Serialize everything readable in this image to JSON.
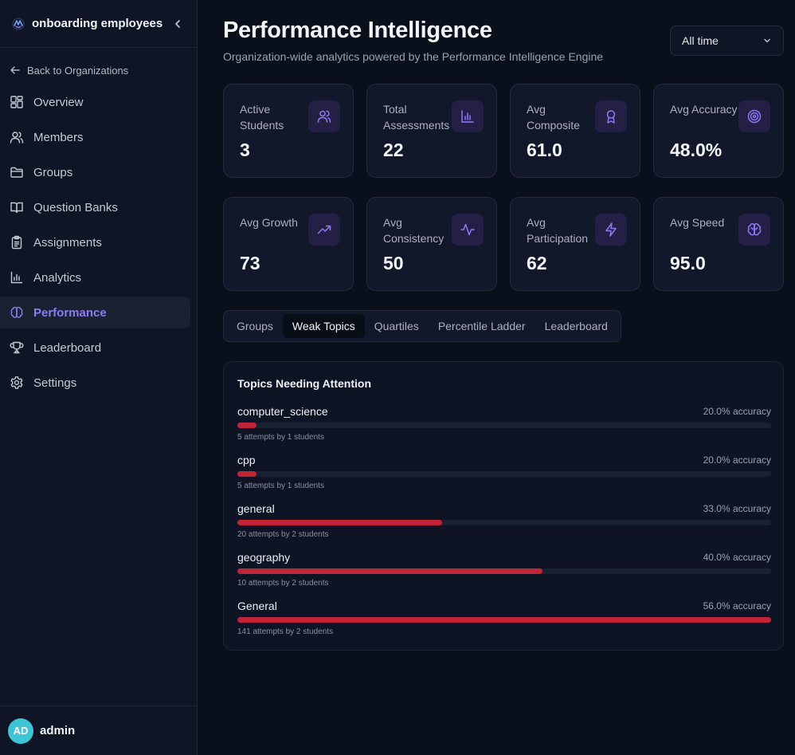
{
  "sidebar": {
    "org_name": "onboarding employees",
    "back_label": "Back to Organizations",
    "items": [
      {
        "label": "Overview",
        "icon": "layout-dashboard-icon"
      },
      {
        "label": "Members",
        "icon": "users-icon"
      },
      {
        "label": "Groups",
        "icon": "folder-icon"
      },
      {
        "label": "Question Banks",
        "icon": "book-open-icon"
      },
      {
        "label": "Assignments",
        "icon": "clipboard-icon"
      },
      {
        "label": "Analytics",
        "icon": "bar-chart-icon"
      },
      {
        "label": "Performance",
        "icon": "brain-icon",
        "active": true
      },
      {
        "label": "Leaderboard",
        "icon": "trophy-icon"
      },
      {
        "label": "Settings",
        "icon": "gear-icon"
      }
    ],
    "user": {
      "initials": "AD",
      "name": "admin"
    }
  },
  "header": {
    "title": "Performance Intelligence",
    "subtitle": "Organization-wide analytics powered by the Performance Intelligence Engine",
    "time_filter": "All time"
  },
  "stats": [
    {
      "label": "Active Students",
      "value": "3",
      "icon": "users-icon"
    },
    {
      "label": "Total Assessments",
      "value": "22",
      "icon": "bar-chart-icon"
    },
    {
      "label": "Avg Composite",
      "value": "61.0",
      "icon": "award-icon"
    },
    {
      "label": "Avg Accuracy",
      "value": "48.0%",
      "icon": "target-icon"
    },
    {
      "label": "Avg Growth",
      "value": "73",
      "icon": "trending-up-icon"
    },
    {
      "label": "Avg Consistency",
      "value": "50",
      "icon": "activity-icon"
    },
    {
      "label": "Avg Participation",
      "value": "62",
      "icon": "zap-icon"
    },
    {
      "label": "Avg Speed",
      "value": "95.0",
      "icon": "brain-icon"
    }
  ],
  "tabs": [
    "Groups",
    "Weak Topics",
    "Quartiles",
    "Percentile Ladder",
    "Leaderboard"
  ],
  "active_tab": "Weak Topics",
  "weak_topics": {
    "title": "Topics Needing Attention",
    "topics": [
      {
        "name": "computer_science",
        "accuracy": 20.0,
        "accuracy_text": "20.0% accuracy",
        "meta": "5 attempts by 1 students"
      },
      {
        "name": "cpp",
        "accuracy": 20.0,
        "accuracy_text": "20.0% accuracy",
        "meta": "5 attempts by 1 students"
      },
      {
        "name": "general",
        "accuracy": 33.0,
        "accuracy_text": "33.0% accuracy",
        "meta": "20 attempts by 2 students"
      },
      {
        "name": "geography",
        "accuracy": 40.0,
        "accuracy_text": "40.0% accuracy",
        "meta": "10 attempts by 2 students"
      },
      {
        "name": "General",
        "accuracy": 56.0,
        "accuracy_text": "56.0% accuracy",
        "meta": "141 attempts by 2 students"
      }
    ]
  },
  "colors": {
    "accent": "#8b7cf6",
    "danger_bar": "#c02438",
    "background": "#0a0f1c",
    "avatar": "#3fc3d6"
  }
}
